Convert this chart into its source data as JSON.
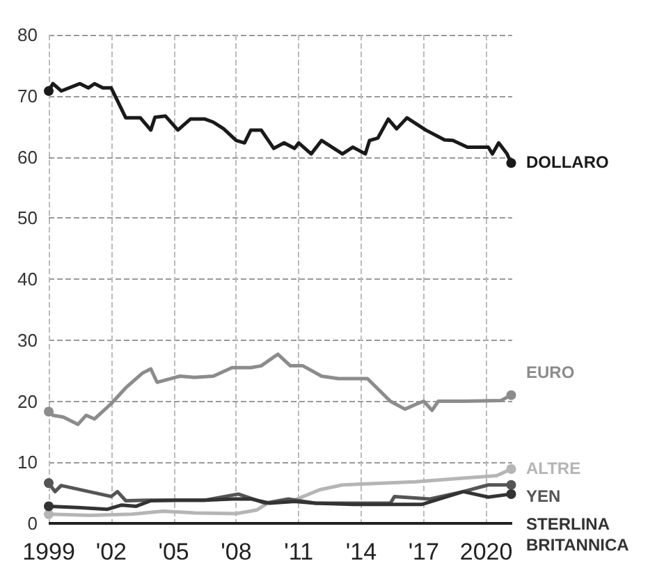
{
  "chart_data": {
    "type": "line",
    "xlim": [
      1999,
      2021.25
    ],
    "xticks": [
      {
        "value": 1999,
        "label": "1999"
      },
      {
        "value": 2002,
        "label": "'02"
      },
      {
        "value": 2005,
        "label": "'05"
      },
      {
        "value": 2008,
        "label": "'08"
      },
      {
        "value": 2011,
        "label": "'11"
      },
      {
        "value": 2014,
        "label": "'14"
      },
      {
        "value": 2017,
        "label": "'17"
      },
      {
        "value": 2020,
        "label": "2020"
      }
    ],
    "ylim": [
      0,
      80
    ],
    "yticks": [
      0,
      10,
      20,
      30,
      40,
      50,
      60,
      70,
      80
    ],
    "grid": true,
    "legend": false,
    "line_style": "solid",
    "series": [
      {
        "name": "DOLLARO",
        "color": "#1a1a1a",
        "x": [
          1999.0,
          1999.2,
          1999.6,
          2000.5,
          2000.9,
          2001.2,
          2001.6,
          2002.0,
          2002.7,
          2003.4,
          2003.9,
          2004.1,
          2004.6,
          2005.2,
          2005.8,
          2006.5,
          2006.9,
          2007.4,
          2008.0,
          2008.4,
          2008.7,
          2009.2,
          2009.8,
          2010.3,
          2010.8,
          2011.0,
          2011.6,
          2012.1,
          2013.1,
          2013.6,
          2014.2,
          2014.4,
          2014.8,
          2015.3,
          2015.7,
          2016.2,
          2017.1,
          2018.0,
          2018.4,
          2019.1,
          2020.1,
          2020.3,
          2020.6,
          2021.0,
          2021.2
        ],
        "values": [
          70.8,
          72.0,
          70.8,
          72.0,
          71.3,
          72.0,
          71.3,
          71.3,
          66.4,
          66.4,
          64.4,
          66.5,
          66.7,
          64.4,
          66.2,
          66.2,
          65.7,
          64.6,
          62.7,
          62.3,
          64.4,
          64.4,
          61.4,
          62.3,
          61.4,
          62.3,
          60.5,
          62.7,
          60.5,
          61.6,
          60.5,
          62.7,
          63.1,
          66.2,
          64.6,
          66.4,
          64.4,
          62.8,
          62.7,
          61.6,
          61.6,
          60.5,
          62.3,
          60.5,
          59.0
        ]
      },
      {
        "name": "EURO",
        "color": "#8c8c8c",
        "x": [
          1999.0,
          1999.2,
          1999.7,
          2000.4,
          2000.8,
          2001.2,
          2002.0,
          2002.7,
          2003.5,
          2003.9,
          2004.2,
          2005.3,
          2006.0,
          2006.9,
          2007.8,
          2008.7,
          2009.2,
          2010.0,
          2010.6,
          2011.2,
          2012.1,
          2012.9,
          2014.3,
          2015.4,
          2016.1,
          2016.7,
          2017.0,
          2017.4,
          2017.7,
          2018.9,
          2020.7,
          2021.2
        ],
        "values": [
          18.3,
          17.7,
          17.4,
          16.2,
          17.7,
          17.1,
          19.6,
          22.2,
          24.6,
          25.3,
          23.1,
          24.1,
          23.9,
          24.1,
          25.5,
          25.5,
          25.8,
          27.7,
          25.8,
          25.8,
          24.1,
          23.7,
          23.7,
          20.0,
          18.7,
          19.6,
          20.0,
          18.5,
          20.0,
          20.0,
          20.1,
          21.0
        ]
      },
      {
        "name": "ALTRE",
        "color": "#b5b5b5",
        "x": [
          1999.0,
          2001.0,
          2003.0,
          2004.5,
          2006.0,
          2008.0,
          2009.0,
          2009.5,
          2010.8,
          2012.0,
          2013.1,
          2016.6,
          2018.9,
          2020.5,
          2021.2
        ],
        "values": [
          1.5,
          1.3,
          1.5,
          2.0,
          1.7,
          1.6,
          2.2,
          3.3,
          3.8,
          5.5,
          6.3,
          6.8,
          7.4,
          7.8,
          8.9
        ]
      },
      {
        "name": "YEN",
        "color": "#555555",
        "x": [
          1999.0,
          1999.3,
          1999.6,
          2002.0,
          2002.3,
          2002.7,
          2003.7,
          2005.2,
          2006.5,
          2008.1,
          2009.4,
          2010.5,
          2011.8,
          2014.1,
          2015.4,
          2015.6,
          2017.3,
          2018.9,
          2020.1,
          2021.2
        ],
        "values": [
          6.6,
          5.2,
          6.2,
          4.4,
          5.2,
          3.7,
          3.8,
          3.8,
          3.8,
          4.8,
          3.3,
          4.0,
          3.3,
          3.3,
          3.3,
          4.4,
          4.0,
          5.2,
          6.3,
          6.3
        ]
      },
      {
        "name": "STERLINA BRITANNICA",
        "color": "#333333",
        "x": [
          1999.0,
          2000.4,
          2001.8,
          2002.5,
          2003.2,
          2003.9,
          2005.2,
          2006.5,
          2007.8,
          2008.7,
          2009.6,
          2010.8,
          2011.8,
          2013.6,
          2015.1,
          2016.9,
          2018.9,
          2020.1,
          2021.2
        ],
        "values": [
          2.8,
          2.6,
          2.3,
          3.0,
          2.8,
          3.7,
          3.8,
          3.8,
          4.0,
          4.0,
          3.3,
          3.6,
          3.3,
          3.1,
          3.1,
          3.1,
          5.2,
          4.3,
          4.8
        ]
      }
    ]
  }
}
